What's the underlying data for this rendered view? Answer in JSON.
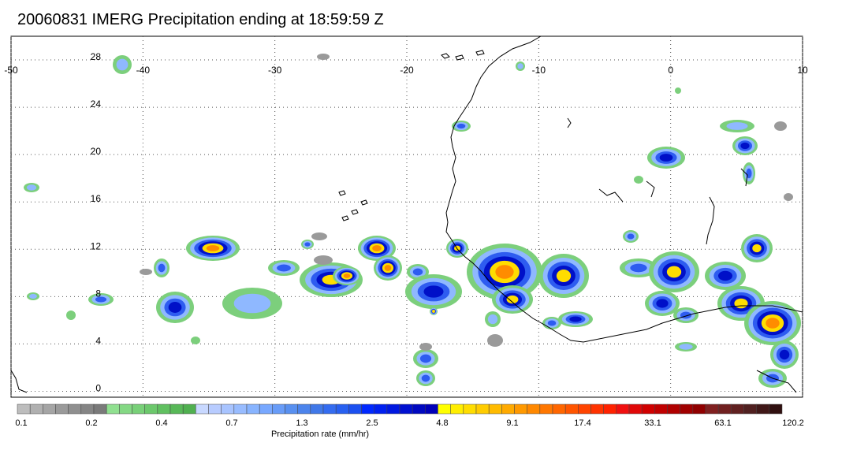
{
  "title": "20060831 IMERG Precipitation ending at 18:59:59 Z",
  "map": {
    "lon_ticks": [
      "-50",
      "-40",
      "-30",
      "-20",
      "-10",
      "0",
      "10"
    ],
    "lat_ticks": [
      "28",
      "24",
      "20",
      "16",
      "12",
      "8",
      "4",
      "0"
    ],
    "lon_range": [
      -50,
      10
    ],
    "lat_range": [
      -0.5,
      30
    ],
    "grid": "dotted"
  },
  "colorbar": {
    "title": "Precipitation rate (mm/hr)",
    "labels": [
      "0.1",
      "0.2",
      "0.4",
      "0.7",
      "1.3",
      "2.5",
      "4.8",
      "9.1",
      "17.4",
      "33.1",
      "63.1",
      "120.2"
    ],
    "colors": [
      "#bdbdbd",
      "#b0b0b0",
      "#a5a5a5",
      "#9a9a9a",
      "#8f8f8f",
      "#858585",
      "#7a7a7a",
      "#90e090",
      "#84d884",
      "#78d078",
      "#6cc86c",
      "#60c060",
      "#58b858",
      "#50b050",
      "#c8d8ff",
      "#b8ccff",
      "#a8c4ff",
      "#98bcff",
      "#88b4ff",
      "#78a8ff",
      "#689cf8",
      "#5890f0",
      "#4c84ec",
      "#4078e8",
      "#346cf0",
      "#2860f0",
      "#1c50f0",
      "#0028ff",
      "#0020f0",
      "#0018e0",
      "#0010d0",
      "#0008c0",
      "#0000b8",
      "#ffff00",
      "#ffee00",
      "#ffdd00",
      "#ffcc00",
      "#ffbb00",
      "#ffaa00",
      "#ff9900",
      "#ff8800",
      "#ff7700",
      "#ff6600",
      "#ff5500",
      "#ff4400",
      "#ff3300",
      "#ff2200",
      "#f01010",
      "#e00808",
      "#d00000",
      "#c00000",
      "#b00000",
      "#a00000",
      "#900000",
      "#802020",
      "#702020",
      "#602020",
      "#502020",
      "#401818",
      "#301010"
    ]
  }
}
